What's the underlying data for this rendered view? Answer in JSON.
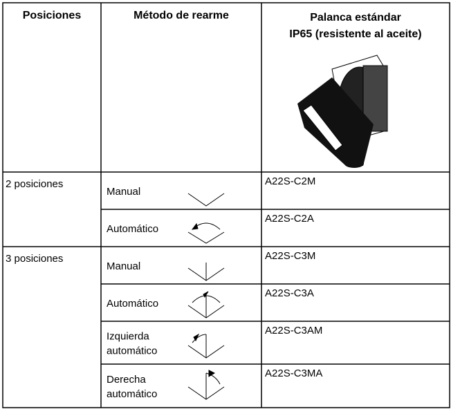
{
  "header": {
    "positions": "Posiciones",
    "method": "Método de rearme",
    "lever": [
      "Palanca estándar",
      "IP65 (resistente al aceite)"
    ]
  },
  "groups": [
    {
      "positions": "2 posiciones",
      "rows": [
        {
          "method": [
            "Manual"
          ],
          "model": "A22S-C2M"
        },
        {
          "method": [
            "Automático"
          ],
          "model": "A22S-C2A"
        }
      ]
    },
    {
      "positions": "3 posiciones",
      "rows": [
        {
          "method": [
            "Manual"
          ],
          "model": "A22S-C3M"
        },
        {
          "method": [
            "Automático"
          ],
          "model": "A22S-C3A"
        },
        {
          "method": [
            "Izquierda",
            "automático"
          ],
          "model": "A22S-C3AM"
        },
        {
          "method": [
            "Derecha",
            "automático"
          ],
          "model": "A22S-C3MA"
        }
      ]
    }
  ]
}
